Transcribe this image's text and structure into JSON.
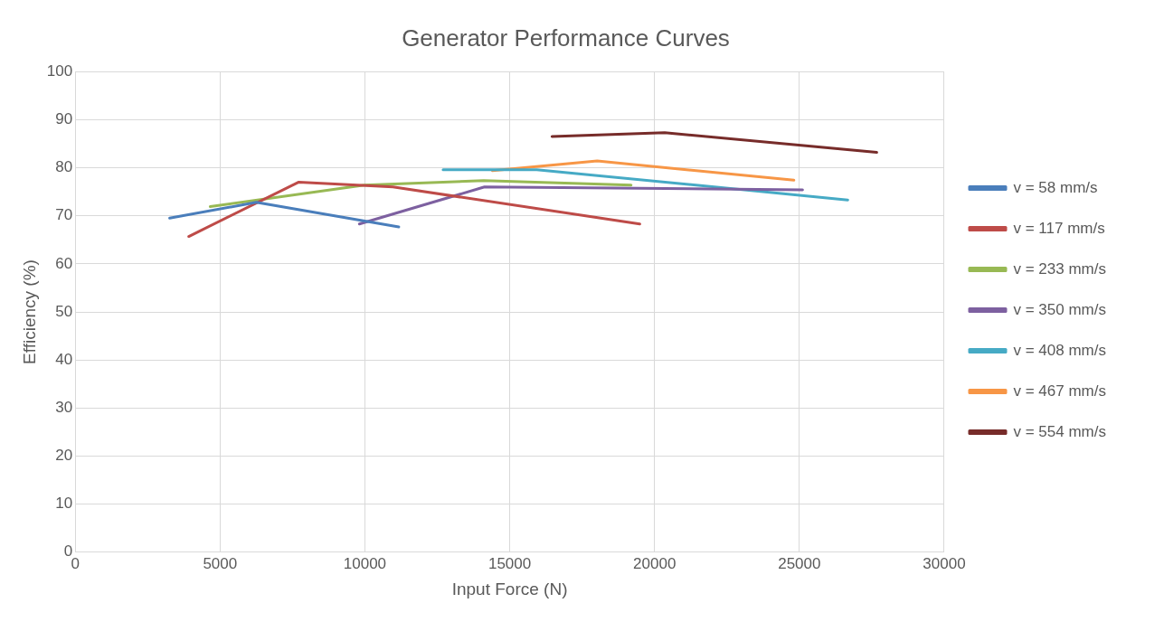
{
  "chart_data": {
    "type": "line",
    "title": "Generator Performance Curves",
    "xlabel": "Input Force (N)",
    "ylabel": "Efficiency (%)",
    "xlim": [
      0,
      30000
    ],
    "xticks": [
      0,
      5000,
      10000,
      15000,
      20000,
      25000,
      30000
    ],
    "ylim": [
      0,
      100
    ],
    "yticks": [
      0,
      10,
      20,
      30,
      40,
      50,
      60,
      70,
      80,
      90,
      100
    ],
    "grid": true,
    "legend": "right",
    "marker": "none",
    "series": [
      {
        "name": "v = 58 mm/s",
        "color": "#4a7ebb",
        "x": [
          3260,
          6250,
          11170
        ],
        "values": [
          69.5,
          72.8,
          67.7
        ]
      },
      {
        "name": "v = 117 mm/s",
        "color": "#be4b48",
        "x": [
          3920,
          7720,
          10970,
          19490
        ],
        "values": [
          65.7,
          77.0,
          76.0,
          68.3
        ]
      },
      {
        "name": "v = 233 mm/s",
        "color": "#98b954",
        "x": [
          4660,
          9980,
          14100,
          19190
        ],
        "values": [
          71.9,
          76.4,
          77.3,
          76.4
        ]
      },
      {
        "name": "v = 350 mm/s",
        "color": "#7d60a0",
        "x": [
          9810,
          14130,
          25110
        ],
        "values": [
          68.3,
          76.0,
          75.4
        ]
      },
      {
        "name": "v = 408 mm/s",
        "color": "#46aac5",
        "x": [
          12700,
          15930,
          26670
        ],
        "values": [
          79.6,
          79.6,
          73.3
        ]
      },
      {
        "name": "v = 467 mm/s",
        "color": "#f79646",
        "x": [
          14400,
          18020,
          24810
        ],
        "values": [
          79.4,
          81.4,
          77.4
        ]
      },
      {
        "name": "v = 554 mm/s",
        "color": "#772c2a",
        "x": [
          16460,
          20350,
          27670
        ],
        "values": [
          86.5,
          87.3,
          83.2
        ]
      }
    ]
  }
}
